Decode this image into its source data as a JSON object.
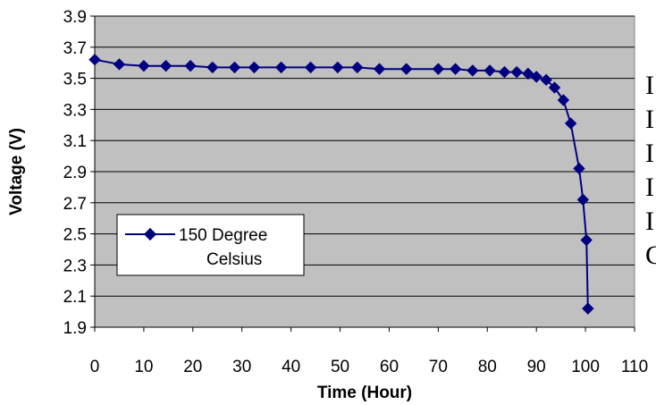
{
  "colors": {
    "plot_background": "#c0c0c0",
    "series": "#000080",
    "gridline": "#000000"
  },
  "chart_data": {
    "type": "line",
    "xlabel": "Time (Hour)",
    "ylabel": "Voltage (V)",
    "xlim": [
      0,
      110
    ],
    "ylim": [
      1.9,
      3.9
    ],
    "xticks": [
      0,
      10,
      20,
      30,
      40,
      50,
      60,
      70,
      80,
      90,
      100,
      110
    ],
    "yticks": [
      "1.9",
      "2.1",
      "2.3",
      "2.5",
      "2.7",
      "2.9",
      "3.1",
      "3.3",
      "3.5",
      "3.7",
      "3.9"
    ],
    "grid": "horizontal",
    "legend_position": "bottom-left",
    "series": [
      {
        "name": "150 Degree Celsius",
        "marker": "diamond",
        "x": [
          0,
          5,
          10,
          14.5,
          19.5,
          24,
          28.5,
          32.5,
          38,
          44,
          49.5,
          53.5,
          58,
          63.5,
          70,
          73.5,
          77,
          80.5,
          83.5,
          86,
          88.3,
          90,
          92,
          93.7,
          95.5,
          97,
          98.7,
          99.5,
          100.2,
          100.5
        ],
        "y": [
          3.62,
          3.59,
          3.58,
          3.58,
          3.58,
          3.57,
          3.57,
          3.57,
          3.57,
          3.57,
          3.57,
          3.57,
          3.56,
          3.56,
          3.56,
          3.56,
          3.55,
          3.55,
          3.54,
          3.54,
          3.53,
          3.51,
          3.49,
          3.44,
          3.36,
          3.21,
          2.92,
          2.72,
          2.46,
          2.02
        ]
      }
    ]
  },
  "side_text": [
    "I",
    "I",
    "I",
    "I",
    "I",
    "C"
  ]
}
